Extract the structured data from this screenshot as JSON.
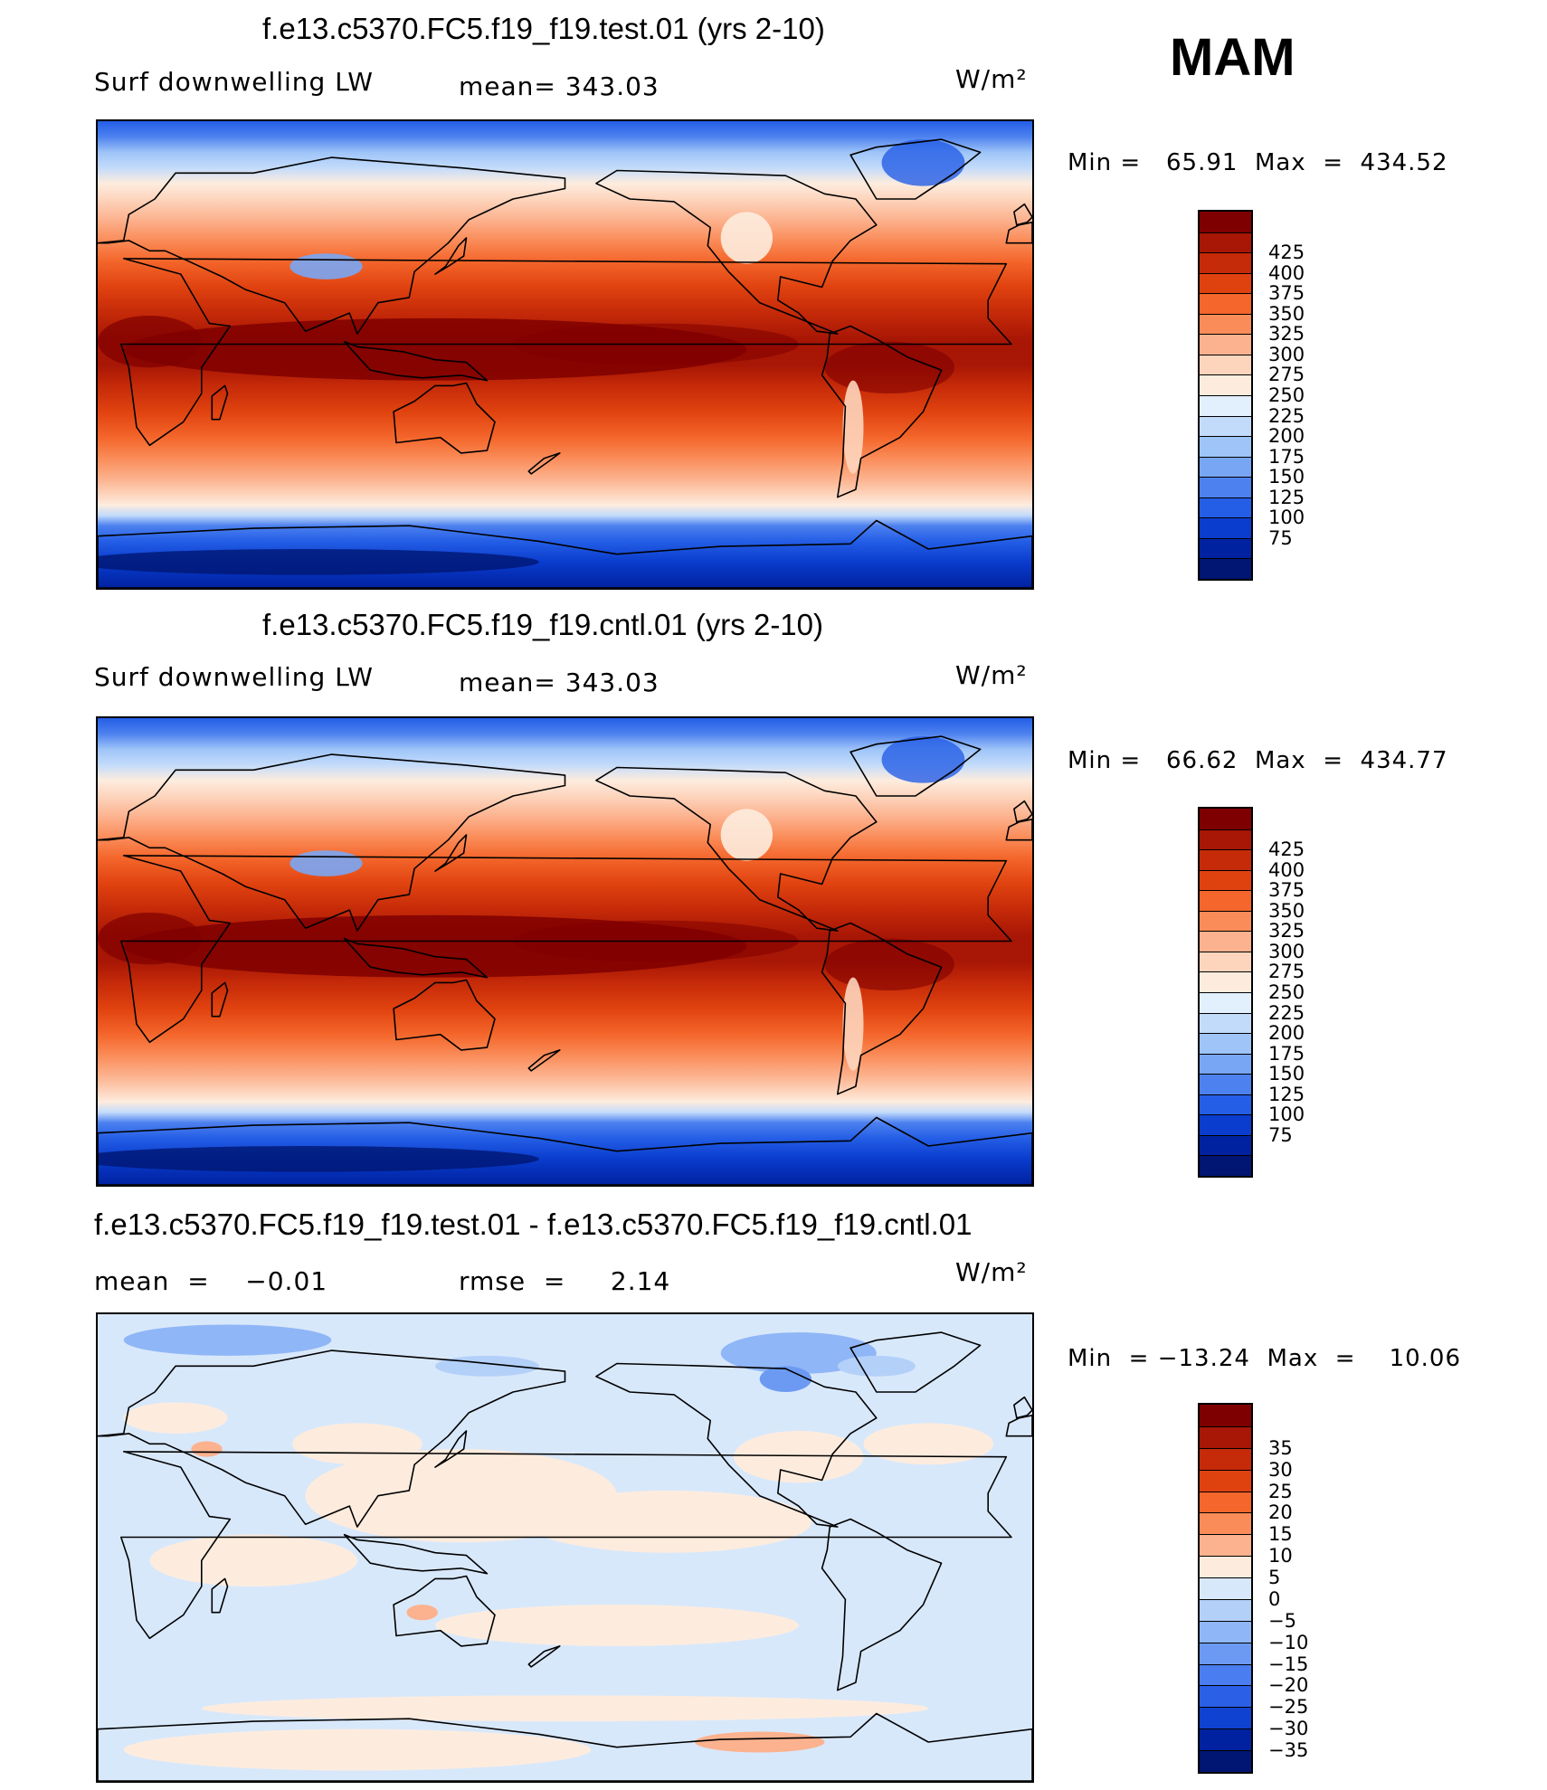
{
  "season": "MAM",
  "units_label": "W/m²",
  "panels": [
    {
      "title": "f.e13.c5370.FC5.f19_f19.test.01 (yrs 2-10)",
      "left_label": "Surf downwelling LW",
      "mid_label": "mean= 343.03",
      "minmax": "Min =   65.91  Max  =  434.52"
    },
    {
      "title": "f.e13.c5370.FC5.f19_f19.cntl.01 (yrs 2-10)",
      "left_label": "Surf downwelling LW",
      "mid_label": "mean= 343.03",
      "minmax": "Min =   66.62  Max  =  434.77"
    },
    {
      "title": "f.e13.c5370.FC5.f19_f19.test.01 - f.e13.c5370.FC5.f19_f19.cntl.01",
      "left_label": "mean  =    −0.01",
      "mid_label": "rmse  =     2.14",
      "minmax": "Min  = −13.24  Max  =    10.06"
    }
  ],
  "chart_data": [
    {
      "type": "heatmap",
      "title": "f.e13.c5370.FC5.f19_f19.test.01 (yrs 2-10)",
      "variable": "Surf downwelling LW",
      "units": "W/m²",
      "mean": 343.03,
      "min": 65.91,
      "max": 434.52,
      "colorbar_levels": [
        425,
        400,
        375,
        350,
        325,
        300,
        275,
        250,
        225,
        200,
        175,
        150,
        125,
        100,
        75
      ],
      "colorbar_colors": [
        "#7f0000",
        "#a81605",
        "#c52a09",
        "#e0420f",
        "#f4662b",
        "#fa8c59",
        "#fcb28e",
        "#fdd5bd",
        "#fdecde",
        "#e2effc",
        "#c3dbfb",
        "#9ec4f8",
        "#79a6f4",
        "#4d81ef",
        "#245ee6",
        "#0a3ccd",
        "#0022a0",
        "#001672"
      ],
      "profile_by_latitude": [
        {
          "lat": 90,
          "value": 180
        },
        {
          "lat": 75,
          "value": 230
        },
        {
          "lat": 60,
          "value": 275
        },
        {
          "lat": 45,
          "value": 310
        },
        {
          "lat": 30,
          "value": 360
        },
        {
          "lat": 15,
          "value": 400
        },
        {
          "lat": 0,
          "value": 420
        },
        {
          "lat": -15,
          "value": 395
        },
        {
          "lat": -30,
          "value": 355
        },
        {
          "lat": -45,
          "value": 315
        },
        {
          "lat": -60,
          "value": 270
        },
        {
          "lat": -70,
          "value": 160
        },
        {
          "lat": -80,
          "value": 100
        },
        {
          "lat": -90,
          "value": 90
        }
      ]
    },
    {
      "type": "heatmap",
      "title": "f.e13.c5370.FC5.f19_f19.cntl.01 (yrs 2-10)",
      "variable": "Surf downwelling LW",
      "units": "W/m²",
      "mean": 343.03,
      "min": 66.62,
      "max": 434.77,
      "colorbar_levels": [
        425,
        400,
        375,
        350,
        325,
        300,
        275,
        250,
        225,
        200,
        175,
        150,
        125,
        100,
        75
      ],
      "colorbar_colors": [
        "#7f0000",
        "#a81605",
        "#c52a09",
        "#e0420f",
        "#f4662b",
        "#fa8c59",
        "#fcb28e",
        "#fdd5bd",
        "#fdecde",
        "#e2effc",
        "#c3dbfb",
        "#9ec4f8",
        "#79a6f4",
        "#4d81ef",
        "#245ee6",
        "#0a3ccd",
        "#0022a0",
        "#001672"
      ],
      "profile_by_latitude": [
        {
          "lat": 90,
          "value": 180
        },
        {
          "lat": 75,
          "value": 230
        },
        {
          "lat": 60,
          "value": 275
        },
        {
          "lat": 45,
          "value": 310
        },
        {
          "lat": 30,
          "value": 360
        },
        {
          "lat": 15,
          "value": 400
        },
        {
          "lat": 0,
          "value": 420
        },
        {
          "lat": -15,
          "value": 395
        },
        {
          "lat": -30,
          "value": 355
        },
        {
          "lat": -45,
          "value": 315
        },
        {
          "lat": -60,
          "value": 270
        },
        {
          "lat": -70,
          "value": 160
        },
        {
          "lat": -80,
          "value": 100
        },
        {
          "lat": -90,
          "value": 90
        }
      ]
    },
    {
      "type": "heatmap",
      "title": "f.e13.c5370.FC5.f19_f19.test.01 - f.e13.c5370.FC5.f19_f19.cntl.01",
      "units": "W/m²",
      "mean": -0.01,
      "rmse": 2.14,
      "min": -13.24,
      "max": 10.06,
      "colorbar_levels": [
        35,
        30,
        25,
        20,
        15,
        10,
        5,
        0,
        -5,
        -10,
        -15,
        -20,
        -25,
        -30,
        -35
      ],
      "colorbar_colors": [
        "#7f0000",
        "#a81605",
        "#c52a09",
        "#e0420f",
        "#f4662b",
        "#fa8c59",
        "#fcb28e",
        "#fdecde",
        "#d8e8fb",
        "#b3d0f9",
        "#8fb6f6",
        "#6c9af2",
        "#4a7def",
        "#2b60e6",
        "#0f42d0",
        "#0022a0",
        "#001672"
      ]
    }
  ]
}
